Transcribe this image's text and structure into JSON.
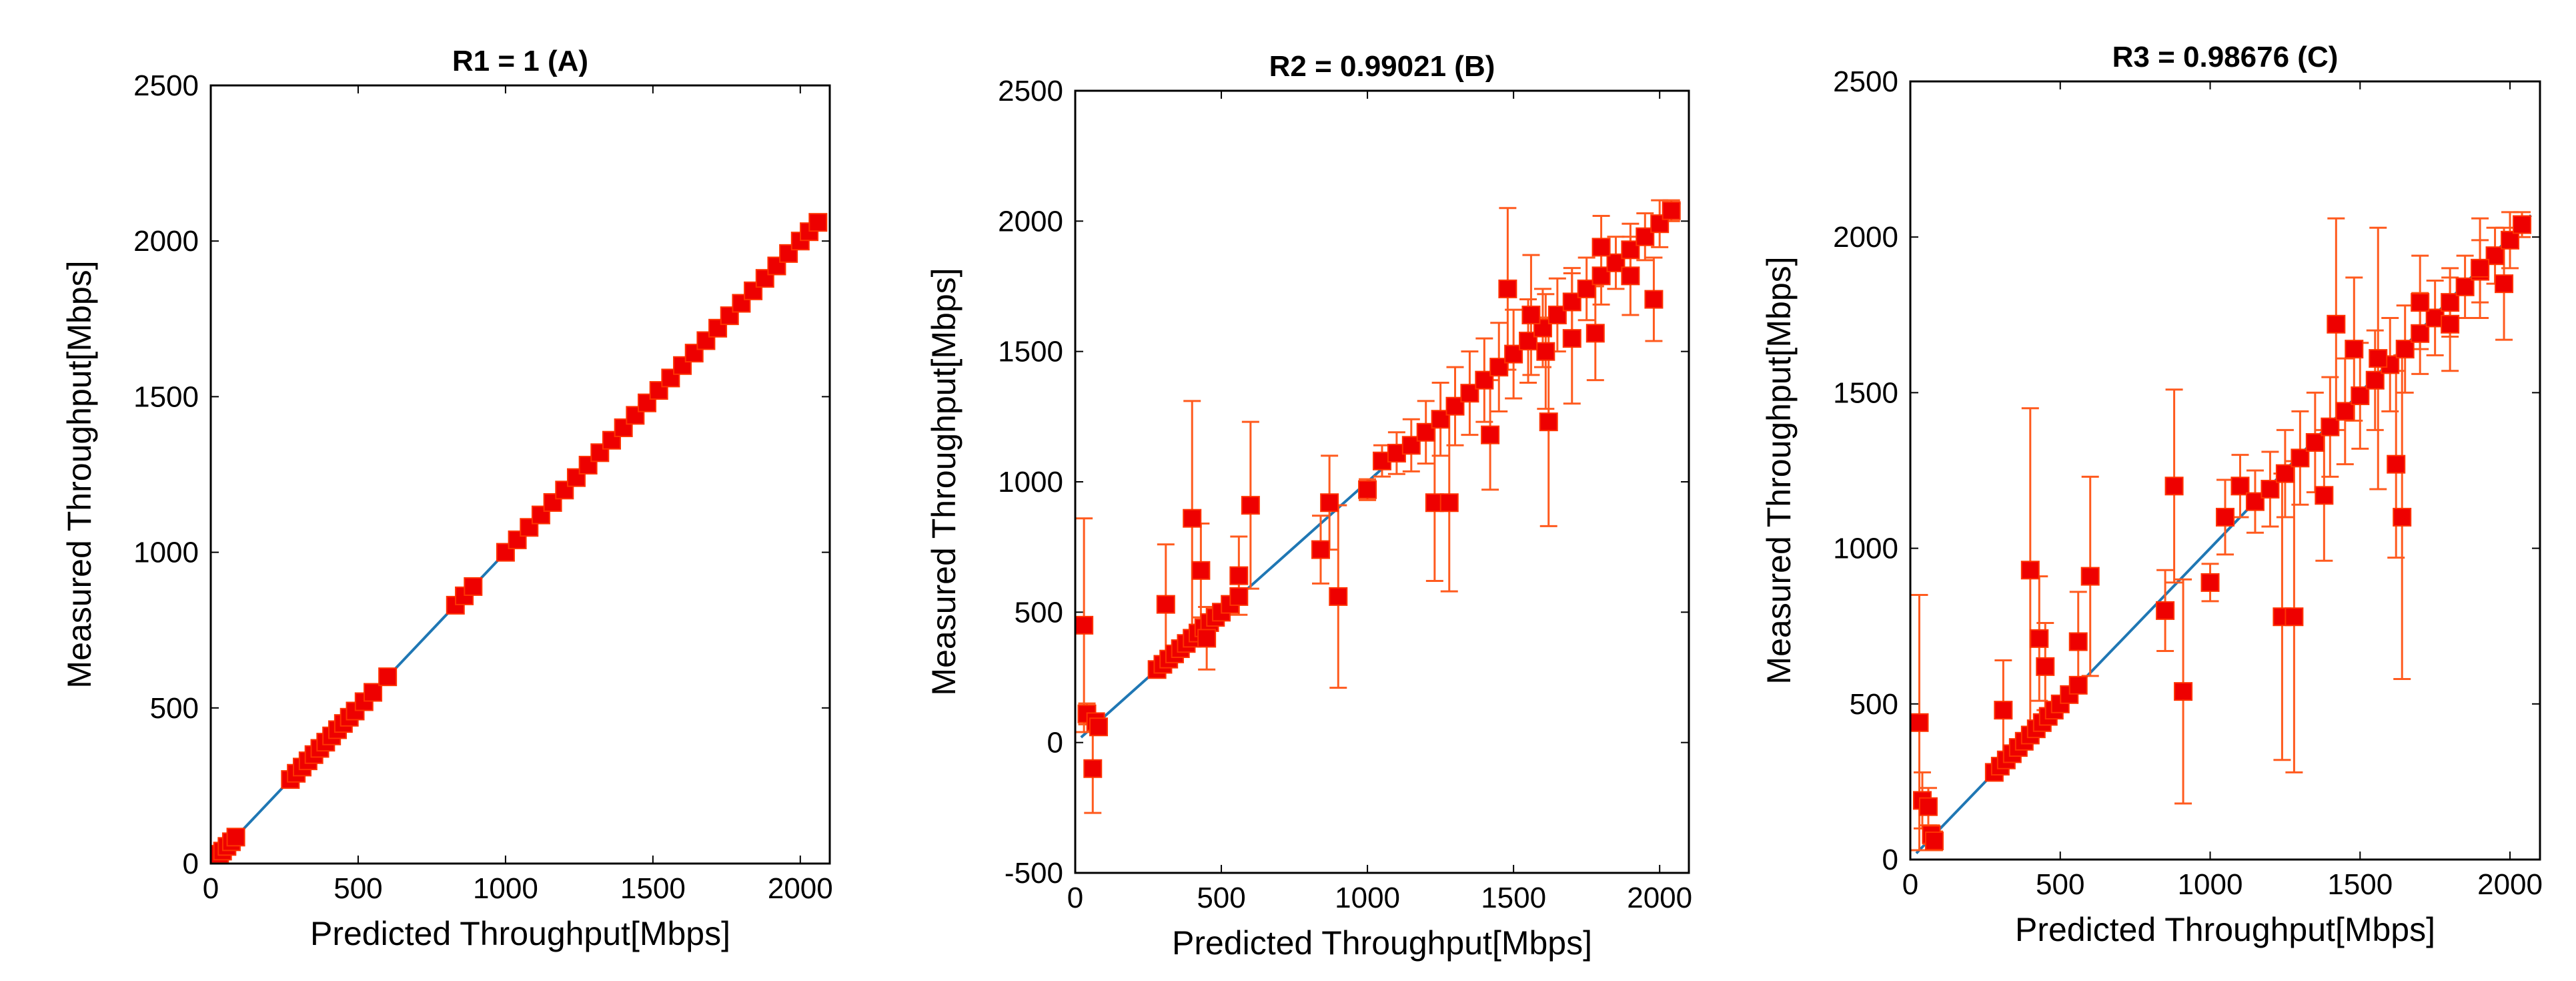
{
  "chart_data": [
    {
      "type": "scatter",
      "title": "R1 = 1 (A)",
      "xlabel": "Predicted Throughput[Mbps]",
      "ylabel": "Measured Throughput[Mbps]",
      "xlim": [
        0,
        2100
      ],
      "ylim": [
        0,
        2500
      ],
      "xticks": [
        0,
        500,
        1000,
        1500,
        2000
      ],
      "yticks": [
        0,
        500,
        1000,
        1500,
        2000,
        2500
      ],
      "xtick_labels": [
        "0",
        "500",
        "1000",
        "1500",
        "2000"
      ],
      "ytick_labels": [
        "0",
        "500",
        "1000",
        "1500",
        "2000",
        "2500"
      ],
      "fit_line": [
        [
          20,
          20
        ],
        [
          2070,
          2070
        ]
      ],
      "series": [
        {
          "name": "measured",
          "x": [
            30,
            40,
            55,
            70,
            85,
            270,
            290,
            310,
            330,
            350,
            370,
            390,
            410,
            430,
            450,
            470,
            490,
            520,
            550,
            600,
            830,
            860,
            890,
            1000,
            1040,
            1080,
            1120,
            1160,
            1200,
            1240,
            1280,
            1320,
            1360,
            1400,
            1440,
            1480,
            1520,
            1560,
            1600,
            1640,
            1680,
            1720,
            1760,
            1800,
            1840,
            1880,
            1920,
            1960,
            2000,
            2030,
            2060
          ],
          "y": [
            30,
            40,
            55,
            70,
            85,
            270,
            290,
            310,
            330,
            350,
            370,
            390,
            410,
            430,
            450,
            470,
            490,
            520,
            550,
            600,
            830,
            860,
            890,
            1000,
            1040,
            1080,
            1120,
            1160,
            1200,
            1240,
            1280,
            1320,
            1360,
            1400,
            1440,
            1480,
            1520,
            1560,
            1600,
            1640,
            1680,
            1720,
            1760,
            1800,
            1840,
            1880,
            1920,
            1960,
            2000,
            2030,
            2060
          ],
          "err": [
            10,
            10,
            10,
            10,
            10,
            10,
            10,
            10,
            10,
            10,
            10,
            10,
            10,
            10,
            10,
            10,
            10,
            10,
            10,
            10,
            10,
            10,
            10,
            10,
            10,
            10,
            10,
            10,
            10,
            10,
            10,
            10,
            10,
            10,
            10,
            10,
            10,
            10,
            10,
            10,
            10,
            10,
            10,
            10,
            10,
            10,
            10,
            10,
            10,
            10,
            10
          ]
        }
      ]
    },
    {
      "type": "scatter",
      "title": "R2 = 0.99021 (B)",
      "xlabel": "Predicted Throughput[Mbps]",
      "ylabel": "Measured Throughput[Mbps]",
      "xlim": [
        0,
        2100
      ],
      "ylim": [
        -500,
        2500
      ],
      "xticks": [
        0,
        500,
        1000,
        1500,
        2000
      ],
      "yticks": [
        -500,
        0,
        500,
        1000,
        1500,
        2000,
        2500
      ],
      "xtick_labels": [
        "0",
        "500",
        "1000",
        "1500",
        "2000"
      ],
      "ytick_labels": [
        "-500",
        "0",
        "500",
        "1000",
        "1500",
        "2000",
        "2500"
      ],
      "fit_line": [
        [
          20,
          20
        ],
        [
          2070,
          2070
        ]
      ],
      "series": [
        {
          "name": "measured",
          "x": [
            30,
            40,
            60,
            70,
            80,
            280,
            300,
            320,
            340,
            360,
            380,
            400,
            420,
            440,
            460,
            480,
            500,
            530,
            560,
            600,
            310,
            400,
            430,
            450,
            560,
            840,
            870,
            900,
            1000,
            1050,
            1100,
            1150,
            1200,
            1250,
            1300,
            1350,
            1400,
            1450,
            1500,
            1550,
            1600,
            1650,
            1700,
            1750,
            1800,
            1850,
            1900,
            1950,
            2000,
            2040,
            1420,
            1480,
            1560,
            1620,
            1700,
            1800,
            1900,
            1980,
            1230,
            1280,
            1610,
            1780
          ],
          "y": [
            450,
            110,
            -100,
            80,
            60,
            280,
            300,
            320,
            340,
            360,
            380,
            400,
            420,
            440,
            460,
            480,
            500,
            530,
            560,
            910,
            530,
            860,
            660,
            400,
            640,
            740,
            920,
            560,
            970,
            1080,
            1110,
            1140,
            1190,
            1240,
            1290,
            1340,
            1390,
            1440,
            1490,
            1540,
            1590,
            1640,
            1690,
            1740,
            1790,
            1840,
            1890,
            1940,
            1990,
            2040,
            1180,
            1740,
            1640,
            1230,
            1550,
            1900,
            1790,
            1700,
            920,
            920,
            1500,
            1570
          ],
          "err": [
            410,
            40,
            170,
            30,
            30,
            20,
            20,
            20,
            20,
            20,
            20,
            20,
            20,
            20,
            20,
            20,
            20,
            20,
            20,
            320,
            230,
            450,
            180,
            120,
            150,
            130,
            180,
            350,
            40,
            60,
            80,
            100,
            120,
            140,
            150,
            160,
            160,
            170,
            170,
            160,
            150,
            140,
            130,
            120,
            110,
            100,
            100,
            90,
            90,
            40,
            210,
            310,
            230,
            400,
            250,
            120,
            150,
            160,
            300,
            340,
            220,
            180
          ]
        }
      ]
    },
    {
      "type": "scatter",
      "title": "R3 = 0.98676 (C)",
      "xlabel": "Predicted Throughput[Mbps]",
      "ylabel": "Measured Throughput[Mbps]",
      "xlim": [
        0,
        2100
      ],
      "ylim": [
        0,
        2500
      ],
      "xticks": [
        0,
        500,
        1000,
        1500,
        2000
      ],
      "yticks": [
        0,
        500,
        1000,
        1500,
        2000,
        2500
      ],
      "xtick_labels": [
        "0",
        "500",
        "1000",
        "1500",
        "2000"
      ],
      "ytick_labels": [
        "0",
        "500",
        "1000",
        "1500",
        "2000",
        "2500"
      ],
      "fit_line": [
        [
          20,
          20
        ],
        [
          2070,
          2070
        ]
      ],
      "series": [
        {
          "name": "measured",
          "x": [
            30,
            40,
            60,
            70,
            80,
            280,
            300,
            320,
            340,
            360,
            380,
            400,
            420,
            440,
            460,
            480,
            500,
            530,
            560,
            600,
            310,
            400,
            430,
            450,
            560,
            850,
            880,
            910,
            1000,
            1050,
            1100,
            1150,
            1200,
            1250,
            1300,
            1350,
            1400,
            1450,
            1500,
            1550,
            1600,
            1650,
            1700,
            1750,
            1800,
            1850,
            1900,
            1950,
            2000,
            2040,
            1380,
            1420,
            1480,
            1560,
            1620,
            1700,
            1800,
            1900,
            1980,
            1240,
            1280,
            1640
          ],
          "y": [
            440,
            190,
            170,
            80,
            60,
            280,
            300,
            320,
            340,
            360,
            380,
            400,
            420,
            440,
            460,
            480,
            500,
            530,
            560,
            910,
            480,
            930,
            710,
            620,
            700,
            800,
            1200,
            540,
            890,
            1100,
            1200,
            1150,
            1190,
            1240,
            1290,
            1340,
            1390,
            1440,
            1490,
            1540,
            1590,
            1640,
            1690,
            1740,
            1790,
            1840,
            1890,
            1940,
            1990,
            2040,
            1170,
            1720,
            1640,
            1610,
            1270,
            1790,
            1720,
            1900,
            1850,
            780,
            780,
            1100
          ],
          "err": [
            410,
            90,
            60,
            30,
            30,
            20,
            20,
            20,
            20,
            20,
            20,
            20,
            20,
            20,
            20,
            20,
            20,
            20,
            20,
            320,
            160,
            520,
            200,
            140,
            160,
            130,
            310,
            360,
            60,
            120,
            100,
            100,
            120,
            140,
            150,
            160,
            160,
            170,
            170,
            160,
            150,
            140,
            130,
            120,
            110,
            100,
            100,
            90,
            90,
            40,
            210,
            340,
            230,
            420,
            300,
            150,
            150,
            160,
            180,
            460,
            500,
            520
          ]
        }
      ]
    }
  ]
}
